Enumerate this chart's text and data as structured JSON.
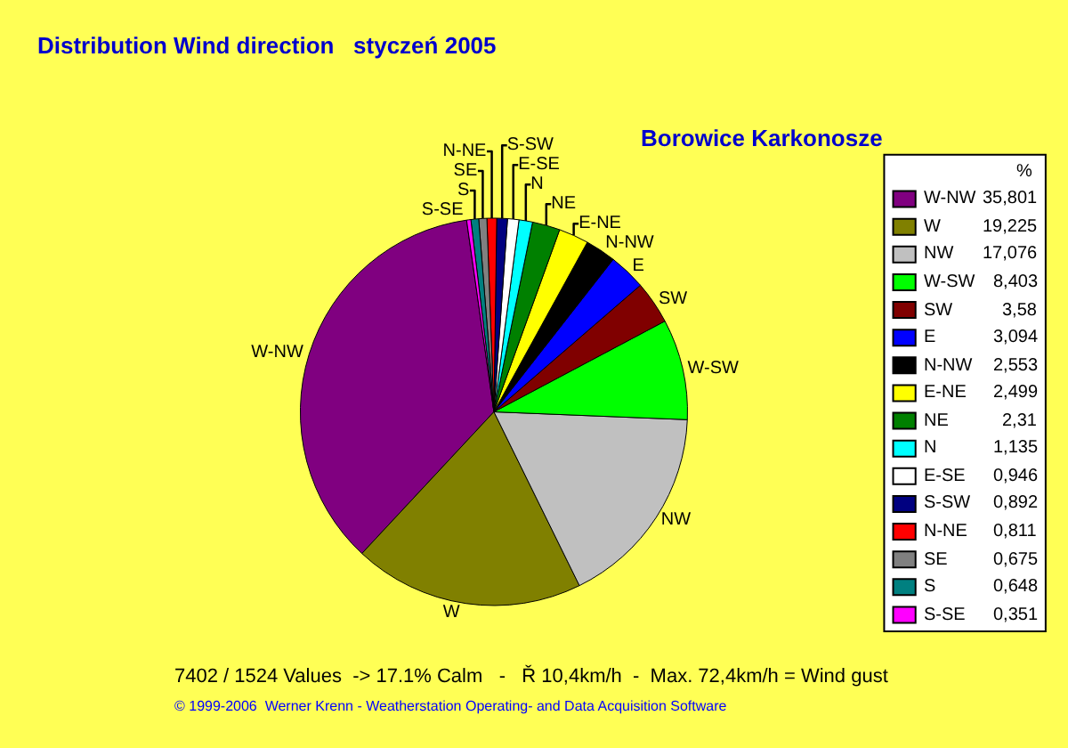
{
  "chart_data": {
    "type": "pie",
    "title": "Distribution Wind direction   styczeń 2005",
    "subtitle": "Borowice Karkonosze",
    "legend_title": "%",
    "legend": "right",
    "categories": [
      "W-NW",
      "W",
      "NW",
      "W-SW",
      "SW",
      "E",
      "N-NW",
      "E-NE",
      "NE",
      "N",
      "E-SE",
      "S-SW",
      "N-NE",
      "SE",
      "S",
      "S-SE"
    ],
    "values": [
      35.801,
      19.225,
      17.076,
      8.403,
      3.58,
      3.094,
      2.553,
      2.499,
      2.31,
      1.135,
      0.946,
      0.892,
      0.811,
      0.675,
      0.648,
      0.351
    ],
    "value_labels": [
      "35,801",
      "19,225",
      "17,076",
      "8,403",
      "3,58",
      "3,094",
      "2,553",
      "2,499",
      "2,31",
      "1,135",
      "0,946",
      "0,892",
      "0,811",
      "0,675",
      "0,648",
      "0,351"
    ],
    "colors": [
      "#800080",
      "#808000",
      "#c0c0c0",
      "#00ff00",
      "#800000",
      "#0000ff",
      "#000000",
      "#ffff00",
      "#008000",
      "#00ffff",
      "#ffffff",
      "#000080",
      "#ff0000",
      "#808080",
      "#008080",
      "#ff00ff"
    ],
    "annotations": [
      "7402 / 1524 Values  -> 17.1% Calm   -   Ř 10,4km/h  -  Max. 72,4km/h = Wind gust",
      "© 1999-2006  Werner Krenn - Weatherstation Operating- and Data Acquisition Software"
    ]
  }
}
